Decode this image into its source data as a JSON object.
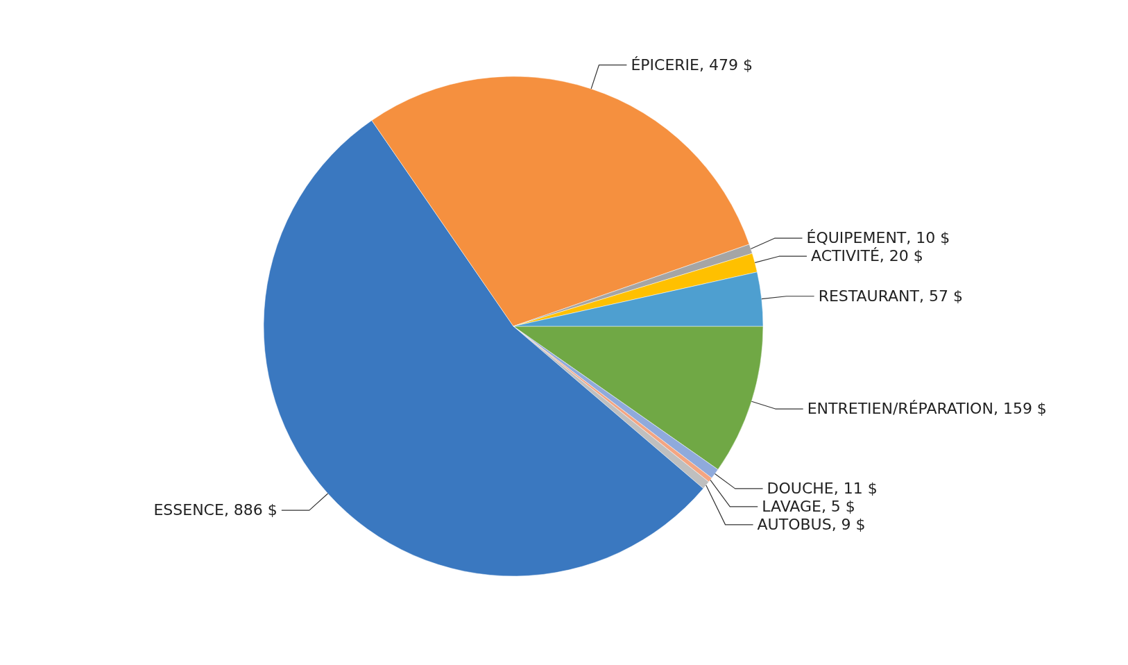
{
  "chart_data": {
    "type": "pie",
    "categories": [
      "ENTRETIEN/RÉPARATION",
      "DOUCHE",
      "LAVAGE",
      "AUTOBUS",
      "ESSENCE",
      "ÉPICERIE",
      "ÉQUIPEMENT",
      "ACTIVITÉ",
      "RESTAURANT"
    ],
    "values": [
      159,
      11,
      5,
      9,
      886,
      479,
      10,
      20,
      57
    ],
    "colors": [
      "#70a845",
      "#8faadc",
      "#f4a582",
      "#bfbfbf",
      "#3a78c0",
      "#f5903f",
      "#a5a5a5",
      "#ffc000",
      "#4e9fd0"
    ],
    "value_labels": [
      "159 $",
      "11 $",
      "5 $",
      "9 $",
      "886 $",
      "479 $",
      "10 $",
      "20 $",
      "57 $"
    ]
  }
}
